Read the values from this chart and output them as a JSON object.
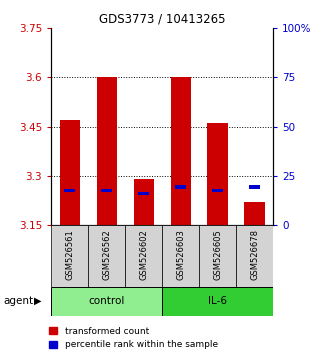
{
  "title": "GDS3773 / 10413265",
  "samples": [
    "GSM526561",
    "GSM526562",
    "GSM526602",
    "GSM526603",
    "GSM526605",
    "GSM526678"
  ],
  "groups": [
    "control",
    "control",
    "control",
    "IL-6",
    "IL-6",
    "IL-6"
  ],
  "red_bar_bottom": [
    3.15,
    3.15,
    3.15,
    3.15,
    3.15,
    3.15
  ],
  "red_bar_top": [
    3.47,
    3.6,
    3.29,
    3.6,
    3.46,
    3.22
  ],
  "blue_marker_val": [
    3.255,
    3.255,
    3.245,
    3.265,
    3.255,
    3.265
  ],
  "ylim": [
    3.15,
    3.75
  ],
  "yticks_left": [
    3.15,
    3.3,
    3.45,
    3.6,
    3.75
  ],
  "yticks_right": [
    0,
    25,
    50,
    75,
    100
  ],
  "yticks_right_labels": [
    "0",
    "25",
    "50",
    "75",
    "100%"
  ],
  "hlines": [
    3.3,
    3.45,
    3.6
  ],
  "bar_width": 0.55,
  "red_color": "#CC0000",
  "blue_color": "#0000CC",
  "left_label_color": "#CC0000",
  "right_label_color": "#0000CC",
  "background_color": "#ffffff",
  "plot_bg_color": "#ffffff",
  "agent_label": "agent",
  "group_defs": [
    {
      "name": "control",
      "start": 0,
      "end": 2,
      "color": "#90EE90"
    },
    {
      "name": "IL-6",
      "start": 3,
      "end": 5,
      "color": "#32CD32"
    }
  ],
  "legend_items": [
    "transformed count",
    "percentile rank within the sample"
  ]
}
